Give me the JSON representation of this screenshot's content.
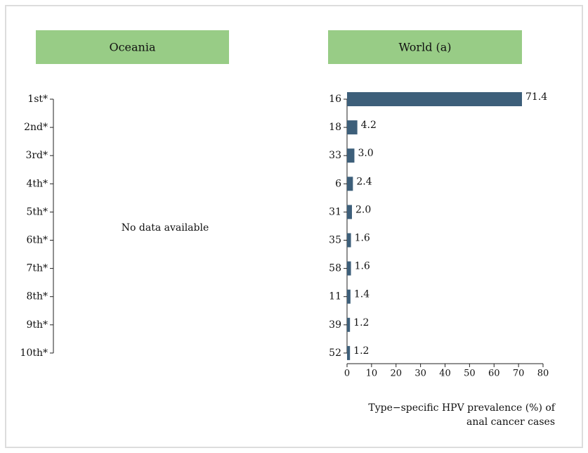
{
  "chart_data": [
    {
      "type": "bar",
      "title": "Oceania",
      "categories": [
        "1st*",
        "2nd*",
        "3rd*",
        "4th*",
        "5th*",
        "6th*",
        "7th*",
        "8th*",
        "9th*",
        "10th*"
      ],
      "annotation": "No data available",
      "header_color": "#98cc86"
    },
    {
      "type": "bar",
      "title": "World (a)",
      "orientation": "horizontal",
      "categories": [
        "16",
        "18",
        "33",
        "6",
        "31",
        "35",
        "58",
        "11",
        "39",
        "52"
      ],
      "values": [
        71.4,
        4.2,
        3.0,
        2.4,
        2.0,
        1.6,
        1.6,
        1.4,
        1.2,
        1.2
      ],
      "value_labels": [
        "71.4",
        "4.2",
        "3.0",
        "2.4",
        "2.0",
        "1.6",
        "1.6",
        "1.4",
        "1.2",
        "1.2"
      ],
      "color": "#3d5f7a",
      "header_color": "#98cc86",
      "xlim": [
        0,
        80
      ],
      "xticks": [
        0,
        10,
        20,
        30,
        40,
        50,
        60,
        70,
        80
      ],
      "x_label": [
        "Type−specific HPV prevalence (%) of",
        "anal cancer cases"
      ]
    }
  ]
}
